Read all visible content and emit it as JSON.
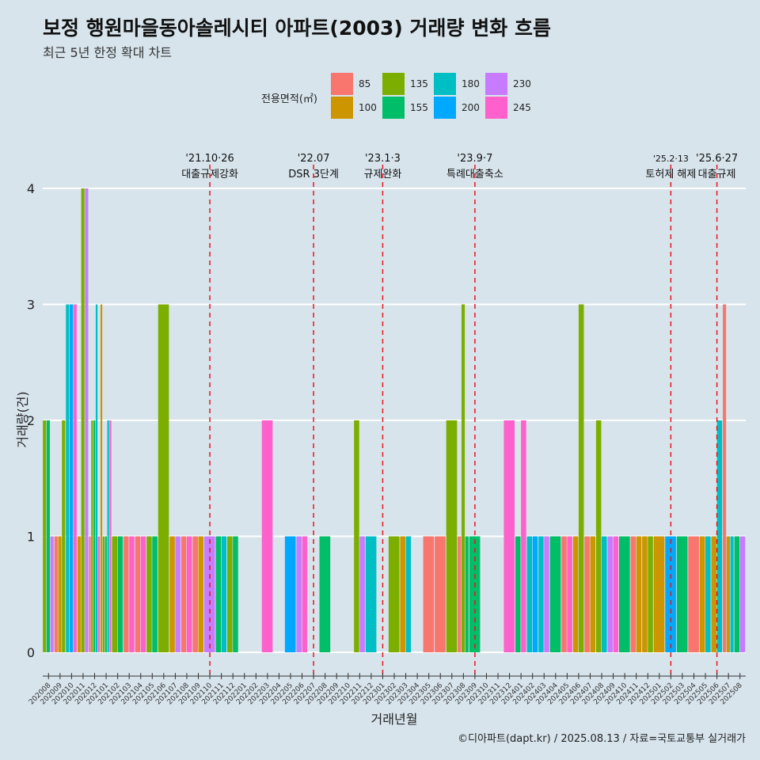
{
  "title": "보정 행원마을동아솔레시티 아파트(2003) 거래량 변화 흐름",
  "subtitle": "최근 5년 한정 확대 차트",
  "legend_title": "전용면적(㎡)",
  "footer": "©디아파트(dapt.kr) / 2025.08.13 / 자료=국토교통부 실거래가",
  "colors": {
    "85": "#f8766d",
    "100": "#cd9600",
    "135": "#7cae00",
    "155": "#00be67",
    "180": "#00bfc4",
    "200": "#00a9ff",
    "230": "#c77cff",
    "245": "#ff61cc",
    "event_line": "#e8141c",
    "background": "#d7e4ec",
    "grid": "#ffffff"
  },
  "chart_data": {
    "type": "bar",
    "xlabel": "거래년월",
    "ylabel": "거래량(건)",
    "ylim": [
      0,
      4
    ],
    "yticks": [
      0,
      1,
      2,
      3,
      4
    ],
    "grid": true,
    "legend_position": "top",
    "legend_entries": [
      "85",
      "100",
      "135",
      "155",
      "180",
      "200",
      "230",
      "245"
    ],
    "categories": [
      "202008",
      "202009",
      "202010",
      "202011",
      "202012",
      "202101",
      "202102",
      "202103",
      "202104",
      "202105",
      "202106",
      "202107",
      "202108",
      "202109",
      "202110",
      "202111",
      "202112",
      "202201",
      "202202",
      "202203",
      "202204",
      "202205",
      "202206",
      "202207",
      "202208",
      "202209",
      "202210",
      "202211",
      "202212",
      "202301",
      "202302",
      "202303",
      "202304",
      "202305",
      "202306",
      "202307",
      "202308",
      "202309",
      "202310",
      "202311",
      "202312",
      "202401",
      "202402",
      "202403",
      "202404",
      "202405",
      "202406",
      "202407",
      "202408",
      "202409",
      "202410",
      "202411",
      "202412",
      "202501",
      "202502",
      "202503",
      "202504",
      "202505",
      "202506",
      "202507",
      "202508"
    ],
    "series": [
      {
        "name": "85",
        "values": [
          0,
          1,
          0,
          0,
          1,
          0,
          0,
          1,
          1,
          0,
          0,
          0,
          1,
          1,
          0,
          0,
          0,
          0,
          0,
          0,
          0,
          0,
          0,
          0,
          0,
          0,
          0,
          0,
          0,
          0,
          0,
          0,
          0,
          1,
          1,
          0,
          1,
          0,
          0,
          0,
          0,
          0,
          0,
          0,
          0,
          1,
          0,
          1,
          0,
          0,
          0,
          1,
          0,
          0,
          0,
          0,
          1,
          0,
          0,
          3,
          0
        ]
      },
      {
        "name": "100",
        "values": [
          0,
          1,
          0,
          1,
          0,
          3,
          0,
          0,
          0,
          0,
          0,
          1,
          0,
          1,
          0,
          0,
          0,
          0,
          0,
          0,
          0,
          0,
          0,
          0,
          0,
          0,
          0,
          0,
          0,
          0,
          0,
          1,
          0,
          0,
          0,
          0,
          0,
          0,
          0,
          0,
          0,
          0,
          0,
          0,
          0,
          0,
          1,
          1,
          0,
          0,
          0,
          1,
          1,
          1,
          0,
          0,
          0,
          1,
          1,
          1,
          0
        ]
      },
      {
        "name": "135",
        "values": [
          2,
          2,
          0,
          4,
          2,
          1,
          1,
          0,
          0,
          1,
          3,
          0,
          0,
          0,
          0,
          0,
          1,
          0,
          0,
          0,
          0,
          0,
          0,
          0,
          0,
          0,
          0,
          2,
          0,
          0,
          1,
          0,
          0,
          0,
          0,
          2,
          3,
          0,
          0,
          0,
          0,
          0,
          0,
          0,
          0,
          0,
          3,
          0,
          2,
          0,
          0,
          0,
          1,
          0,
          0,
          0,
          0,
          0,
          0,
          0,
          0
        ]
      },
      {
        "name": "155",
        "values": [
          2,
          0,
          0,
          0,
          2,
          1,
          1,
          0,
          0,
          1,
          0,
          0,
          0,
          0,
          0,
          1,
          1,
          0,
          0,
          0,
          0,
          0,
          0,
          0,
          1,
          0,
          0,
          0,
          0,
          0,
          0,
          0,
          0,
          0,
          0,
          0,
          1,
          1,
          0,
          0,
          0,
          1,
          0,
          0,
          1,
          0,
          0,
          0,
          0,
          0,
          1,
          0,
          0,
          0,
          0,
          1,
          0,
          0,
          0,
          0,
          1
        ]
      },
      {
        "name": "180",
        "values": [
          0,
          0,
          3,
          0,
          3,
          2,
          0,
          0,
          0,
          0,
          0,
          0,
          0,
          0,
          0,
          1,
          0,
          0,
          0,
          0,
          0,
          0,
          0,
          0,
          0,
          0,
          0,
          0,
          1,
          0,
          0,
          1,
          0,
          0,
          0,
          0,
          0,
          0,
          0,
          0,
          0,
          0,
          1,
          1,
          0,
          0,
          0,
          0,
          1,
          0,
          0,
          0,
          0,
          0,
          0,
          0,
          0,
          1,
          2,
          1,
          0
        ]
      },
      {
        "name": "200",
        "values": [
          0,
          0,
          3,
          0,
          0,
          0,
          0,
          0,
          0,
          0,
          0,
          0,
          0,
          0,
          0,
          0,
          0,
          0,
          0,
          0,
          0,
          1,
          0,
          0,
          0,
          0,
          0,
          0,
          0,
          0,
          0,
          0,
          0,
          0,
          0,
          0,
          0,
          0,
          0,
          0,
          0,
          0,
          1,
          0,
          0,
          0,
          0,
          0,
          0,
          0,
          0,
          0,
          0,
          0,
          1,
          0,
          0,
          0,
          0,
          0,
          0
        ]
      },
      {
        "name": "230",
        "values": [
          1,
          0,
          0,
          4,
          0,
          0,
          0,
          0,
          0,
          0,
          0,
          1,
          0,
          0,
          1,
          0,
          0,
          0,
          0,
          0,
          0,
          0,
          1,
          0,
          0,
          0,
          0,
          1,
          0,
          0,
          0,
          0,
          0,
          0,
          0,
          0,
          0,
          0,
          0,
          0,
          0,
          0,
          0,
          1,
          0,
          0,
          0,
          0,
          0,
          1,
          0,
          0,
          0,
          0,
          0,
          0,
          0,
          0,
          0,
          0,
          1
        ]
      },
      {
        "name": "245",
        "values": [
          0,
          0,
          3,
          0,
          1,
          2,
          0,
          1,
          1,
          0,
          0,
          0,
          1,
          0,
          0,
          0,
          0,
          0,
          0,
          2,
          0,
          0,
          1,
          0,
          0,
          0,
          0,
          0,
          0,
          0,
          0,
          0,
          0,
          0,
          0,
          0,
          0,
          0,
          0,
          0,
          2,
          2,
          0,
          0,
          0,
          1,
          0,
          0,
          0,
          1,
          0,
          0,
          0,
          0,
          0,
          0,
          0,
          0,
          0,
          0,
          0
        ]
      }
    ],
    "annotations": [
      {
        "x": "202110",
        "line1": "'21.10·26",
        "line2": "대출규제강화"
      },
      {
        "x": "202207",
        "line1": "'22.07",
        "line2": "DSR 3단계"
      },
      {
        "x": "202301",
        "line1": "'23.1·3",
        "line2": "규제완화"
      },
      {
        "x": "202309",
        "line1": "'23.9·7",
        "line2": "특례대출축소"
      },
      {
        "x": "202502",
        "line1": "'25.2·13",
        "line2": "토허제 해제"
      },
      {
        "x": "202506",
        "line1": "'25.6·27",
        "line2": "대출규제"
      }
    ]
  }
}
